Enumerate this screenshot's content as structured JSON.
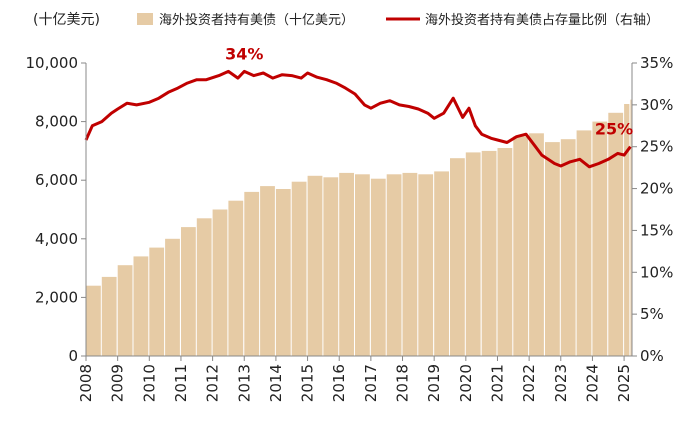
{
  "chart_data": {
    "type": "bar+line",
    "y_left_unit": "(十亿美元)",
    "legend": {
      "bar_label": "海外投资者持有美债（十亿美元）",
      "line_label": "海外投资者持有美债占存量比例（右轴）",
      "position": "top"
    },
    "colors": {
      "bar": "#e6cba5",
      "line": "#c00000",
      "annotation": "#c00000"
    },
    "x_ticks": [
      "2008",
      "2009",
      "2010",
      "2011",
      "2012",
      "2013",
      "2014",
      "2015",
      "2016",
      "2017",
      "2018",
      "2019",
      "2020",
      "2021",
      "2022",
      "2023",
      "2024",
      "2025"
    ],
    "y_left": {
      "min": 0,
      "max": 10000,
      "ticks": [
        "0",
        "2,000",
        "4,000",
        "6,000",
        "8,000",
        "10,000"
      ]
    },
    "y_right": {
      "min": 0,
      "max": 35,
      "ticks": [
        "0%",
        "5%",
        "10%",
        "15%",
        "20%",
        "25%",
        "30%",
        "35%"
      ]
    },
    "x_range": [
      2008.0,
      2025.25
    ],
    "series": [
      {
        "name": "海外投资者持有美债（十亿美元）",
        "type": "bar",
        "axis": "left",
        "x": [
          2008.0,
          2008.5,
          2009.0,
          2009.5,
          2010.0,
          2010.5,
          2011.0,
          2011.5,
          2012.0,
          2012.5,
          2013.0,
          2013.5,
          2014.0,
          2014.5,
          2015.0,
          2015.5,
          2016.0,
          2016.5,
          2017.0,
          2017.5,
          2018.0,
          2018.5,
          2019.0,
          2019.5,
          2020.0,
          2020.5,
          2021.0,
          2021.5,
          2022.0,
          2022.5,
          2023.0,
          2023.5,
          2024.0,
          2024.5,
          2025.0,
          2025.2
        ],
        "values": [
          2400,
          2700,
          3100,
          3400,
          3700,
          4000,
          4400,
          4700,
          5000,
          5300,
          5600,
          5800,
          5700,
          5950,
          6150,
          6100,
          6250,
          6200,
          6050,
          6200,
          6250,
          6200,
          6300,
          6750,
          6950,
          7000,
          7100,
          7500,
          7600,
          7300,
          7400,
          7700,
          8000,
          8300,
          8600,
          8750
        ]
      },
      {
        "name": "海外投资者持有美债占存量比例（右轴）",
        "type": "line",
        "axis": "right",
        "x": [
          2008.0,
          2008.2,
          2008.5,
          2008.8,
          2009.0,
          2009.3,
          2009.6,
          2010.0,
          2010.3,
          2010.6,
          2010.9,
          2011.2,
          2011.5,
          2011.8,
          2012.2,
          2012.5,
          2012.8,
          2013.0,
          2013.3,
          2013.6,
          2013.9,
          2014.2,
          2014.5,
          2014.8,
          2015.0,
          2015.3,
          2015.6,
          2015.9,
          2016.2,
          2016.5,
          2016.8,
          2017.0,
          2017.3,
          2017.6,
          2017.9,
          2018.2,
          2018.5,
          2018.8,
          2019.0,
          2019.3,
          2019.6,
          2019.9,
          2020.1,
          2020.3,
          2020.5,
          2020.8,
          2021.0,
          2021.3,
          2021.6,
          2021.9,
          2022.2,
          2022.4,
          2022.6,
          2022.8,
          2023.0,
          2023.3,
          2023.6,
          2023.9,
          2024.2,
          2024.5,
          2024.8,
          2025.0,
          2025.2
        ],
        "values": [
          25.8,
          27.5,
          28.0,
          29.0,
          29.5,
          30.2,
          30.0,
          30.3,
          30.8,
          31.5,
          32.0,
          32.6,
          33.0,
          33.0,
          33.5,
          34.0,
          33.2,
          34.0,
          33.5,
          33.8,
          33.2,
          33.6,
          33.5,
          33.2,
          33.8,
          33.3,
          33.0,
          32.6,
          32.0,
          31.3,
          30.0,
          29.6,
          30.2,
          30.5,
          30.0,
          29.8,
          29.5,
          29.0,
          28.4,
          29.0,
          30.8,
          28.5,
          29.6,
          27.5,
          26.5,
          26.0,
          25.8,
          25.5,
          26.2,
          26.5,
          25.0,
          24.0,
          23.5,
          23.0,
          22.7,
          23.2,
          23.5,
          22.6,
          23.0,
          23.5,
          24.2,
          24.0,
          25.0
        ]
      }
    ],
    "annotations": [
      {
        "x": 2013.0,
        "y": 34,
        "label": "34%"
      },
      {
        "x": 2025.2,
        "y": 25,
        "label": "25%"
      }
    ]
  }
}
